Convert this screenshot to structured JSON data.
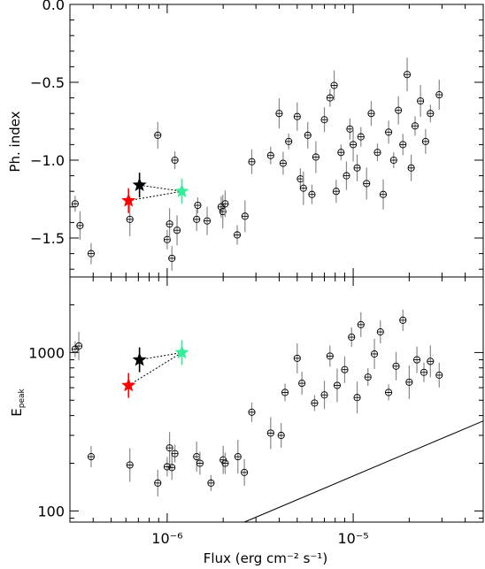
{
  "chart_data": [
    {
      "type": "scatter",
      "xlabel": "Flux (erg cm⁻² s⁻¹)",
      "ylabel": "Ph. index",
      "xscale": "log",
      "xlim": [
        3e-07,
        5e-05
      ],
      "ylim": [
        -1.75,
        0.0
      ],
      "yticks": [
        "0.0",
        "−0.5",
        "−1.0",
        "−1.5"
      ],
      "series": [
        {
          "marker": "circle-errorbar",
          "points": [
            [
              3.2e-07,
              -1.28
            ],
            [
              3.4e-07,
              -1.42
            ],
            [
              3.9e-07,
              -1.6
            ],
            [
              6.3e-07,
              -1.38
            ],
            [
              8.9e-07,
              -0.84
            ],
            [
              1e-06,
              -1.51
            ],
            [
              1.03e-06,
              -1.41
            ],
            [
              1.06e-06,
              -1.63
            ],
            [
              1.1e-06,
              -1.0
            ],
            [
              1.13e-06,
              -1.45
            ],
            [
              1.44e-06,
              -1.38
            ],
            [
              1.46e-06,
              -1.29
            ],
            [
              1.64e-06,
              -1.39
            ],
            [
              1.95e-06,
              -1.3
            ],
            [
              1.99e-06,
              -1.33
            ],
            [
              2.05e-06,
              -1.28
            ],
            [
              2.38e-06,
              -1.48
            ],
            [
              2.62e-06,
              -1.36
            ],
            [
              2.85e-06,
              -1.01
            ],
            [
              3.6e-06,
              -0.97
            ],
            [
              4e-06,
              -0.7
            ],
            [
              4.2e-06,
              -1.02
            ],
            [
              4.5e-06,
              -0.88
            ],
            [
              5e-06,
              -0.72
            ],
            [
              5.2e-06,
              -1.12
            ],
            [
              5.4e-06,
              -1.18
            ],
            [
              5.7e-06,
              -0.84
            ],
            [
              6e-06,
              -1.22
            ],
            [
              6.3e-06,
              -0.98
            ],
            [
              7e-06,
              -0.74
            ],
            [
              7.5e-06,
              -0.6
            ],
            [
              7.9e-06,
              -0.52
            ],
            [
              8.1e-06,
              -1.2
            ],
            [
              8.6e-06,
              -0.95
            ],
            [
              9.2e-06,
              -1.1
            ],
            [
              9.6e-06,
              -0.8
            ],
            [
              1e-05,
              -0.9
            ],
            [
              1.05e-05,
              -1.05
            ],
            [
              1.1e-05,
              -0.85
            ],
            [
              1.18e-05,
              -1.15
            ],
            [
              1.25e-05,
              -0.7
            ],
            [
              1.35e-05,
              -0.95
            ],
            [
              1.45e-05,
              -1.22
            ],
            [
              1.55e-05,
              -0.82
            ],
            [
              1.65e-05,
              -1.0
            ],
            [
              1.75e-05,
              -0.68
            ],
            [
              1.85e-05,
              -0.9
            ],
            [
              1.95e-05,
              -0.45
            ],
            [
              2.05e-05,
              -1.05
            ],
            [
              2.15e-05,
              -0.78
            ],
            [
              2.3e-05,
              -0.62
            ],
            [
              2.45e-05,
              -0.88
            ],
            [
              2.6e-05,
              -0.7
            ],
            [
              2.9e-05,
              -0.58
            ]
          ]
        },
        {
          "name": "",
          "color": "#000000",
          "marker": "star",
          "points": [
            [
              7.1e-07,
              -1.16
            ]
          ]
        },
        {
          "name": "",
          "color": "#ff0000",
          "marker": "star",
          "points": [
            [
              6.2e-07,
              -1.26
            ]
          ]
        },
        {
          "name": "",
          "color": "#33ee99",
          "marker": "star",
          "points": [
            [
              1.2e-06,
              -1.2
            ]
          ]
        }
      ]
    },
    {
      "type": "scatter",
      "xlabel": "Flux (erg cm⁻² s⁻¹)",
      "ylabel": "E_peak",
      "xscale": "log",
      "yscale": "log",
      "xlim": [
        3e-07,
        5e-05
      ],
      "ylim": [
        85,
        3000
      ],
      "yticks": [
        "100",
        "1000"
      ],
      "xticks": [
        "10⁻⁶",
        "10⁻⁵"
      ],
      "series": [
        {
          "marker": "circle-errorbar",
          "points": [
            [
              3.2e-07,
              1050
            ],
            [
              3.35e-07,
              1100
            ],
            [
              3.9e-07,
              220
            ],
            [
              6.3e-07,
              195
            ],
            [
              8.9e-07,
              150
            ],
            [
              1e-06,
              190
            ],
            [
              1.03e-06,
              250
            ],
            [
              1.06e-06,
              188
            ],
            [
              1.1e-06,
              230
            ],
            [
              1.44e-06,
              220
            ],
            [
              1.5e-06,
              200
            ],
            [
              1.72e-06,
              150
            ],
            [
              2e-06,
              210
            ],
            [
              2.05e-06,
              200
            ],
            [
              2.4e-06,
              220
            ],
            [
              2.6e-06,
              175
            ],
            [
              2.85e-06,
              420
            ],
            [
              3.6e-06,
              310
            ],
            [
              4.1e-06,
              300
            ],
            [
              4.3e-06,
              560
            ],
            [
              5e-06,
              920
            ],
            [
              5.3e-06,
              640
            ],
            [
              6.2e-06,
              480
            ],
            [
              7e-06,
              540
            ],
            [
              7.5e-06,
              950
            ],
            [
              8.2e-06,
              620
            ],
            [
              9e-06,
              780
            ],
            [
              9.8e-06,
              1250
            ],
            [
              1.05e-05,
              520
            ],
            [
              1.1e-05,
              1500
            ],
            [
              1.2e-05,
              700
            ],
            [
              1.3e-05,
              980
            ],
            [
              1.4e-05,
              1350
            ],
            [
              1.55e-05,
              560
            ],
            [
              1.7e-05,
              820
            ],
            [
              1.85e-05,
              1600
            ],
            [
              2e-05,
              650
            ],
            [
              2.2e-05,
              900
            ],
            [
              2.4e-05,
              750
            ],
            [
              2.6e-05,
              880
            ],
            [
              2.9e-05,
              720
            ]
          ]
        },
        {
          "name": "",
          "color": "#000000",
          "marker": "star",
          "points": [
            [
              7.1e-07,
              900
            ]
          ]
        },
        {
          "name": "",
          "color": "#ff0000",
          "marker": "star",
          "points": [
            [
              6.2e-07,
              620
            ]
          ]
        },
        {
          "name": "",
          "color": "#33ee99",
          "marker": "star",
          "points": [
            [
              1.2e-06,
              1000
            ]
          ]
        }
      ],
      "line": [
        [
          2.6e-06,
          85
        ],
        [
          5e-05,
          370
        ]
      ]
    }
  ],
  "labels": {
    "xlabel": "Flux (erg cm⁻² s⁻¹)",
    "top_ylabel": "Ph. index",
    "bottom_ylabel_main": "E",
    "bottom_ylabel_sub": "peak"
  }
}
